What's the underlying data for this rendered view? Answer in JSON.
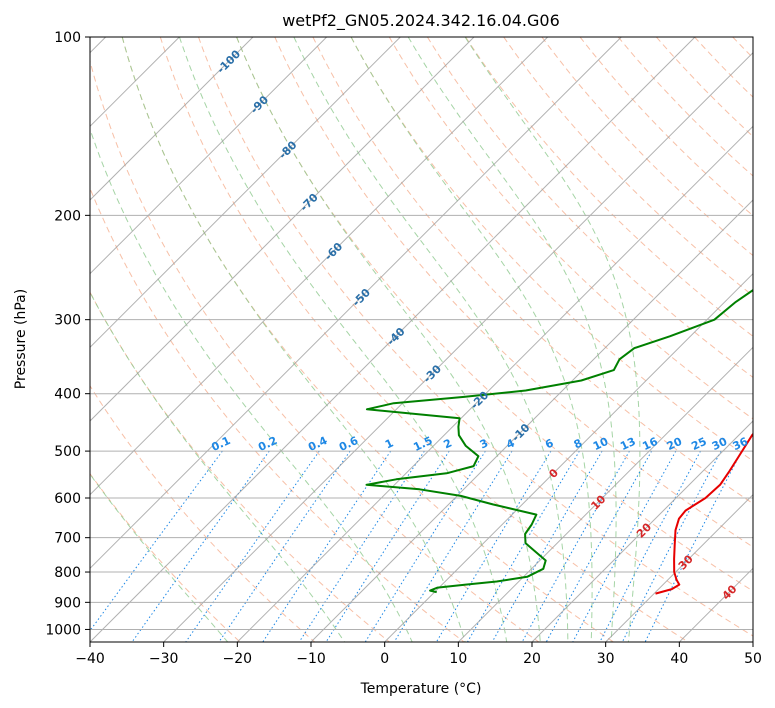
{
  "chart_data": {
    "type": "line",
    "chart_kind": "skew-T log-P diagram",
    "title": "wetPf2_GN05.2024.342.16.04.G06",
    "xlabel": "Temperature (°C)",
    "ylabel": "Pressure (hPa)",
    "xlim": [
      -40,
      50
    ],
    "ylim": [
      1050,
      100
    ],
    "y_scale": "log",
    "grid": true,
    "x_ticks": [
      -40,
      -30,
      -20,
      -10,
      0,
      10,
      20,
      30,
      40,
      50
    ],
    "y_ticks": [
      100,
      200,
      300,
      400,
      500,
      600,
      700,
      800,
      900,
      1000
    ],
    "series": [
      {
        "name": "",
        "color": "#e60000",
        "role": "temperature",
        "points": [
          {
            "p": 870,
            "t": 30.2
          },
          {
            "p": 855,
            "t": 31.8
          },
          {
            "p": 840,
            "t": 32.2
          },
          {
            "p": 825,
            "t": 31.2
          },
          {
            "p": 800,
            "t": 29.8
          },
          {
            "p": 760,
            "t": 28.0
          },
          {
            "p": 720,
            "t": 26.2
          },
          {
            "p": 680,
            "t": 24.3
          },
          {
            "p": 650,
            "t": 23.2
          },
          {
            "p": 630,
            "t": 23.0
          },
          {
            "p": 600,
            "t": 24.0
          },
          {
            "p": 570,
            "t": 24.2
          },
          {
            "p": 540,
            "t": 23.6
          },
          {
            "p": 500,
            "t": 22.6
          },
          {
            "p": 470,
            "t": 21.8
          },
          {
            "p": 445,
            "t": 21.5
          },
          {
            "p": 420,
            "t": 21.1
          },
          {
            "p": 395,
            "t": 19.8
          },
          {
            "p": 370,
            "t": 17.6
          },
          {
            "p": 340,
            "t": 15.7
          },
          {
            "p": 300,
            "t": 13.6
          },
          {
            "p": 270,
            "t": 11.2
          },
          {
            "p": 245,
            "t": 8.5
          },
          {
            "p": 220,
            "t": 6.8
          },
          {
            "p": 200,
            "t": 5.0
          },
          {
            "p": 180,
            "t": 2.8
          },
          {
            "p": 160,
            "t": 0.8
          },
          {
            "p": 140,
            "t": -1.3
          },
          {
            "p": 125,
            "t": -2.9
          },
          {
            "p": 115,
            "t": -1.6
          },
          {
            "p": 108,
            "t": 0.3
          },
          {
            "p": 100,
            "t": 2.2
          }
        ]
      },
      {
        "name": "",
        "color": "#008000",
        "role": "dewpoint",
        "points": [
          {
            "p": 865,
            "t": 0.3
          },
          {
            "p": 860,
            "t": -0.8
          },
          {
            "p": 850,
            "t": -0.2
          },
          {
            "p": 840,
            "t": 3.2
          },
          {
            "p": 830,
            "t": 7.0
          },
          {
            "p": 815,
            "t": 10.5
          },
          {
            "p": 790,
            "t": 11.6
          },
          {
            "p": 765,
            "t": 10.8
          },
          {
            "p": 740,
            "t": 8.3
          },
          {
            "p": 715,
            "t": 5.7
          },
          {
            "p": 690,
            "t": 4.4
          },
          {
            "p": 665,
            "t": 4.0
          },
          {
            "p": 640,
            "t": 3.3
          },
          {
            "p": 615,
            "t": -4.0
          },
          {
            "p": 595,
            "t": -9.5
          },
          {
            "p": 580,
            "t": -16.0
          },
          {
            "p": 570,
            "t": -23.8
          },
          {
            "p": 558,
            "t": -20.5
          },
          {
            "p": 545,
            "t": -14.5
          },
          {
            "p": 530,
            "t": -11.8
          },
          {
            "p": 510,
            "t": -12.5
          },
          {
            "p": 490,
            "t": -15.6
          },
          {
            "p": 470,
            "t": -18.0
          },
          {
            "p": 455,
            "t": -19.2
          },
          {
            "p": 440,
            "t": -20.2
          },
          {
            "p": 425,
            "t": -34.0
          },
          {
            "p": 415,
            "t": -31.2
          },
          {
            "p": 405,
            "t": -22.5
          },
          {
            "p": 395,
            "t": -15.0
          },
          {
            "p": 380,
            "t": -8.8
          },
          {
            "p": 365,
            "t": -5.8
          },
          {
            "p": 350,
            "t": -6.5
          },
          {
            "p": 335,
            "t": -6.0
          },
          {
            "p": 320,
            "t": -2.8
          },
          {
            "p": 300,
            "t": 1.0
          },
          {
            "p": 280,
            "t": 1.5
          },
          {
            "p": 260,
            "t": 2.7
          },
          {
            "p": 240,
            "t": 2.6
          },
          {
            "p": 220,
            "t": 3.0
          },
          {
            "p": 200,
            "t": 3.4
          },
          {
            "p": 185,
            "t": 0.2
          },
          {
            "p": 170,
            "t": -4.0
          },
          {
            "p": 155,
            "t": -6.5
          },
          {
            "p": 140,
            "t": -9.5
          },
          {
            "p": 130,
            "t": -10.2
          },
          {
            "p": 120,
            "t": -9.6
          },
          {
            "p": 110,
            "t": -7.2
          },
          {
            "p": 100,
            "t": -5.3
          }
        ]
      }
    ],
    "isotherms": {
      "color": "#9e9e9e",
      "values": [
        -120,
        -110,
        -100,
        -90,
        -80,
        -70,
        -60,
        -50,
        -40,
        -30,
        -20,
        -10,
        0,
        10,
        20,
        30,
        40,
        50
      ]
    },
    "dry_adiabats": {
      "color": "#f4a582",
      "style": "dashed",
      "theta_k": [
        250,
        260,
        270,
        280,
        290,
        300,
        310,
        320,
        330,
        340,
        350,
        360,
        370,
        380,
        390,
        400,
        410,
        420,
        430,
        440,
        450,
        460,
        470,
        480,
        490,
        500
      ]
    },
    "moist_adiabats": {
      "color": "#8fc98f",
      "style": "dashed",
      "thetae_k": [
        230,
        250,
        270,
        285,
        300,
        315,
        330,
        345,
        360,
        375,
        390
      ]
    },
    "mixing_ratio_lines": {
      "color": "#1e88e5",
      "style": "dotted",
      "values": [
        0.1,
        0.2,
        0.4,
        0.6,
        1,
        1.5,
        2,
        3,
        4,
        6,
        8,
        10,
        13,
        16,
        20,
        25,
        30,
        36
      ]
    },
    "annotations": {
      "mixing_ratio_labels": [
        "0.1",
        "0.2",
        "0.4",
        "0.6",
        "1",
        "1.5",
        "2",
        "3",
        "4",
        "6",
        "8",
        "10",
        "13",
        "16",
        "20",
        "25",
        "30",
        "36"
      ],
      "blue_isotherm_labels": [
        {
          "text": "-100",
          "t": -100,
          "p": 110
        },
        {
          "text": "-90",
          "t": -90,
          "p": 130
        },
        {
          "text": "-80",
          "t": -80,
          "p": 155
        },
        {
          "text": "-70",
          "t": -70,
          "p": 190
        },
        {
          "text": "-60",
          "t": -60,
          "p": 230
        },
        {
          "text": "-50",
          "t": -50,
          "p": 275
        },
        {
          "text": "-40",
          "t": -40,
          "p": 320
        },
        {
          "text": "-30",
          "t": -30,
          "p": 370
        },
        {
          "text": "-20",
          "t": -20,
          "p": 410
        },
        {
          "text": "-10",
          "t": -10,
          "p": 465
        }
      ],
      "red_isotherm_labels": [
        {
          "text": "0",
          "t": 0,
          "p": 545
        },
        {
          "text": "10",
          "t": 10,
          "p": 610
        },
        {
          "text": "20",
          "t": 20,
          "p": 680
        },
        {
          "text": "30",
          "t": 30,
          "p": 770
        },
        {
          "text": "40",
          "t": 40,
          "p": 865
        }
      ]
    }
  }
}
